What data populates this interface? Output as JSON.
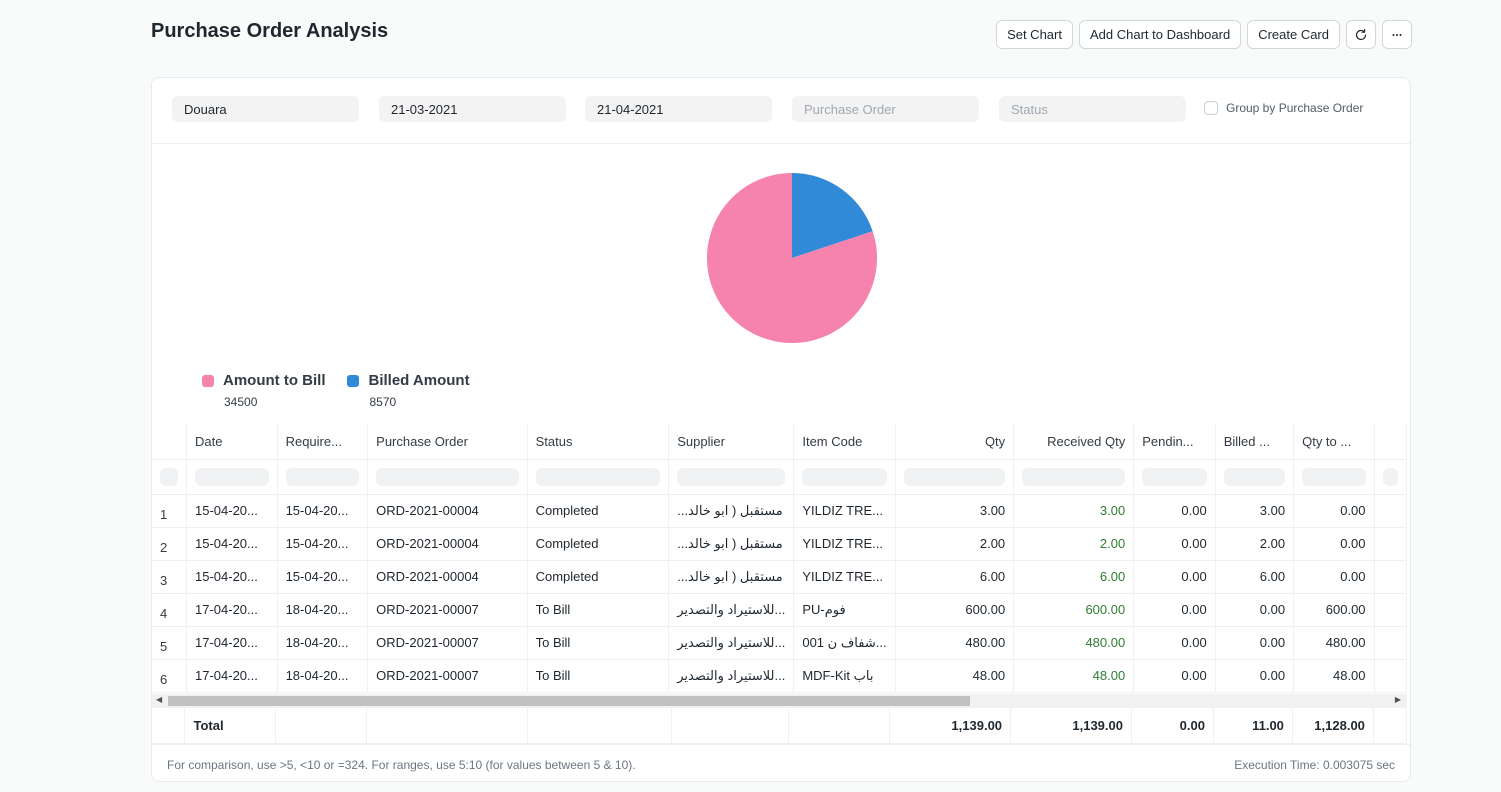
{
  "page": {
    "title": "Purchase Order Analysis"
  },
  "toolbar": {
    "set_chart": "Set Chart",
    "add_to_dashboard": "Add Chart to Dashboard",
    "create_card": "Create Card",
    "refresh_icon": "refresh-icon",
    "more_icon": "more-icon"
  },
  "filters": {
    "company": "Douara",
    "from_date": "21-03-2021",
    "to_date": "21-04-2021",
    "purchase_order_placeholder": "Purchase Order",
    "status_placeholder": "Status",
    "group_by_label": "Group by Purchase Order"
  },
  "colors": {
    "amount_to_bill": "#f683ae",
    "billed_amount": "#318ad8"
  },
  "chart_data": {
    "type": "pie",
    "labels": [
      "Amount to Bill",
      "Billed Amount"
    ],
    "values": [
      34500,
      8570
    ]
  },
  "legend": [
    {
      "label": "Amount to Bill",
      "value": "34500"
    },
    {
      "label": "Billed Amount",
      "value": "8570"
    }
  ],
  "table": {
    "columns": [
      "Date",
      "Require...",
      "Purchase Order",
      "Status",
      "Supplier",
      "Item Code",
      "Qty",
      "Received Qty",
      "Pendin...",
      "Billed ...",
      "Qty to ..."
    ],
    "rows": [
      {
        "idx": "1",
        "date": "15-04-20...",
        "req": "15-04-20...",
        "po": "ORD-2021-00004",
        "status": "Completed",
        "supplier": "مستقبل ( ابو خالد...",
        "item": "YILDIZ TRE...",
        "qty": "3.00",
        "recv": "3.00",
        "pend": "0.00",
        "billed": "3.00",
        "qtb": "0.00"
      },
      {
        "idx": "2",
        "date": "15-04-20...",
        "req": "15-04-20...",
        "po": "ORD-2021-00004",
        "status": "Completed",
        "supplier": "مستقبل ( ابو خالد...",
        "item": "YILDIZ TRE...",
        "qty": "2.00",
        "recv": "2.00",
        "pend": "0.00",
        "billed": "2.00",
        "qtb": "0.00"
      },
      {
        "idx": "3",
        "date": "15-04-20...",
        "req": "15-04-20...",
        "po": "ORD-2021-00004",
        "status": "Completed",
        "supplier": "مستقبل ( ابو خالد...",
        "item": "YILDIZ TRE...",
        "qty": "6.00",
        "recv": "6.00",
        "pend": "0.00",
        "billed": "6.00",
        "qtb": "0.00"
      },
      {
        "idx": "4",
        "date": "17-04-20...",
        "req": "18-04-20...",
        "po": "ORD-2021-00007",
        "status": "To Bill",
        "supplier": "...للاستيراد والتصدير",
        "item": "PU-فوم",
        "qty": "600.00",
        "recv": "600.00",
        "pend": "0.00",
        "billed": "0.00",
        "qtb": "600.00"
      },
      {
        "idx": "5",
        "date": "17-04-20...",
        "req": "18-04-20...",
        "po": "ORD-2021-00007",
        "status": "To Bill",
        "supplier": "...للاستيراد والتصدير",
        "item": "001 شفاف ن...",
        "qty": "480.00",
        "recv": "480.00",
        "pend": "0.00",
        "billed": "0.00",
        "qtb": "480.00"
      },
      {
        "idx": "6",
        "date": "17-04-20...",
        "req": "18-04-20...",
        "po": "ORD-2021-00007",
        "status": "To Bill",
        "supplier": "...للاستيراد والتصدير",
        "item": "MDF-Kit باب",
        "qty": "48.00",
        "recv": "48.00",
        "pend": "0.00",
        "billed": "0.00",
        "qtb": "48.00"
      }
    ],
    "totals": {
      "label": "Total",
      "qty": "1,139.00",
      "recv": "1,139.00",
      "pend": "0.00",
      "billed": "11.00",
      "qtb": "1,128.00"
    }
  },
  "footer": {
    "hint": "For comparison, use >5, <10 or =324. For ranges, use 5:10 (for values between 5 & 10).",
    "exec_time": "Execution Time: 0.003075 sec"
  }
}
